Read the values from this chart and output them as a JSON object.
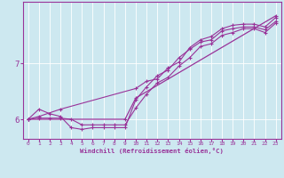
{
  "xlabel": "Windchill (Refroidissement éolien,°C)",
  "background_color": "#cde8f0",
  "line_color": "#993399",
  "xlim": [
    -0.5,
    23.5
  ],
  "ylim": [
    5.65,
    8.1
  ],
  "yticks": [
    6,
    7
  ],
  "xticks": [
    0,
    1,
    2,
    3,
    4,
    5,
    6,
    7,
    8,
    9,
    10,
    11,
    12,
    13,
    14,
    15,
    16,
    17,
    18,
    19,
    20,
    21,
    22,
    23
  ],
  "line1_x": [
    0,
    1,
    2,
    3,
    4,
    5,
    6,
    7,
    8,
    9,
    10,
    11,
    12,
    13,
    14,
    15,
    16,
    17,
    18,
    19,
    20,
    21,
    22,
    23
  ],
  "line1_y": [
    6.0,
    6.18,
    6.1,
    6.05,
    5.85,
    5.82,
    5.85,
    5.85,
    5.85,
    5.85,
    6.35,
    6.58,
    6.78,
    6.88,
    7.1,
    7.25,
    7.38,
    7.42,
    7.58,
    7.62,
    7.65,
    7.65,
    7.6,
    7.75
  ],
  "line2_x": [
    0,
    1,
    2,
    3,
    4,
    5,
    6,
    7,
    8,
    9,
    10,
    11,
    12,
    13,
    14,
    15,
    16,
    17,
    18,
    19,
    20,
    21,
    22,
    23
  ],
  "line2_y": [
    6.0,
    6.02,
    6.02,
    6.02,
    6.0,
    5.9,
    5.9,
    5.9,
    5.9,
    5.9,
    6.2,
    6.45,
    6.65,
    6.75,
    6.95,
    7.1,
    7.3,
    7.35,
    7.5,
    7.55,
    7.62,
    7.62,
    7.55,
    7.72
  ],
  "line3_x": [
    0,
    1,
    3,
    10,
    11,
    12,
    13,
    14,
    15,
    16,
    17,
    18,
    19,
    20,
    21,
    22,
    23
  ],
  "line3_y": [
    6.0,
    6.05,
    6.18,
    6.55,
    6.68,
    6.72,
    6.92,
    7.02,
    7.28,
    7.42,
    7.48,
    7.62,
    7.68,
    7.7,
    7.7,
    7.65,
    7.82
  ],
  "line4_x": [
    0,
    9,
    10,
    23
  ],
  "line4_y": [
    6.0,
    6.0,
    6.38,
    7.85
  ]
}
